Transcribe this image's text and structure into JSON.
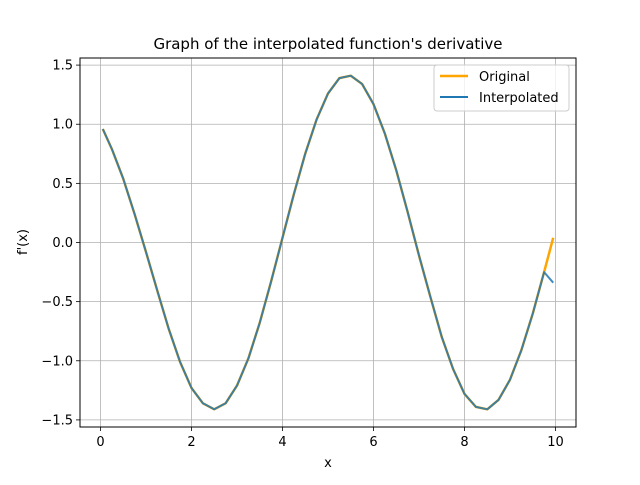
{
  "chart_data": {
    "type": "line",
    "title": "Graph of the interpolated function's derivative",
    "xlabel": "x",
    "ylabel": "f'(x)",
    "xlim": [
      -0.45,
      10.45
    ],
    "ylim": [
      -1.56,
      1.56
    ],
    "xticks": [
      0,
      2,
      4,
      6,
      8,
      10
    ],
    "xtick_labels": [
      "0",
      "2",
      "4",
      "6",
      "8",
      "10"
    ],
    "yticks": [
      -1.5,
      -1.0,
      -0.5,
      0.0,
      0.5,
      1.0,
      1.5
    ],
    "ytick_labels": [
      "−1.5",
      "−1.0",
      "−0.5",
      "0.0",
      "0.5",
      "1.0",
      "1.5"
    ],
    "grid": true,
    "legend_position": "top-right",
    "series": [
      {
        "name": "Original",
        "color": "#ffa500",
        "x": [
          0.05,
          0.25,
          0.5,
          0.75,
          1.0,
          1.25,
          1.5,
          1.75,
          2.0,
          2.25,
          2.5,
          2.75,
          3.0,
          3.25,
          3.5,
          3.75,
          4.0,
          4.25,
          4.5,
          4.75,
          5.0,
          5.25,
          5.5,
          5.75,
          6.0,
          6.25,
          6.5,
          6.75,
          7.0,
          7.25,
          7.5,
          7.75,
          8.0,
          8.25,
          8.5,
          8.75,
          9.0,
          9.25,
          9.5,
          9.75,
          9.95
        ],
        "y": [
          0.96,
          0.79,
          0.54,
          0.24,
          -0.08,
          -0.41,
          -0.73,
          -1.01,
          -1.23,
          -1.36,
          -1.41,
          -1.36,
          -1.21,
          -0.98,
          -0.68,
          -0.33,
          0.04,
          0.41,
          0.75,
          1.04,
          1.26,
          1.39,
          1.41,
          1.34,
          1.17,
          0.92,
          0.61,
          0.26,
          -0.11,
          -0.46,
          -0.8,
          -1.07,
          -1.28,
          -1.39,
          -1.41,
          -1.33,
          -1.16,
          -0.91,
          -0.6,
          -0.25,
          0.04
        ]
      },
      {
        "name": "Interpolated",
        "color": "#1f77b4",
        "x": [
          0.05,
          0.25,
          0.5,
          0.75,
          1.0,
          1.25,
          1.5,
          1.75,
          2.0,
          2.25,
          2.5,
          2.75,
          3.0,
          3.25,
          3.5,
          3.75,
          4.0,
          4.25,
          4.5,
          4.75,
          5.0,
          5.25,
          5.5,
          5.75,
          6.0,
          6.25,
          6.5,
          6.75,
          7.0,
          7.25,
          7.5,
          7.75,
          8.0,
          8.25,
          8.5,
          8.75,
          9.0,
          9.25,
          9.5,
          9.75,
          9.95
        ],
        "y": [
          0.96,
          0.79,
          0.54,
          0.24,
          -0.08,
          -0.41,
          -0.73,
          -1.01,
          -1.23,
          -1.36,
          -1.41,
          -1.36,
          -1.21,
          -0.98,
          -0.68,
          -0.33,
          0.04,
          0.41,
          0.75,
          1.04,
          1.26,
          1.39,
          1.41,
          1.34,
          1.17,
          0.92,
          0.61,
          0.26,
          -0.11,
          -0.46,
          -0.8,
          -1.07,
          -1.28,
          -1.39,
          -1.41,
          -1.33,
          -1.16,
          -0.91,
          -0.6,
          -0.25,
          -0.34
        ]
      }
    ]
  }
}
